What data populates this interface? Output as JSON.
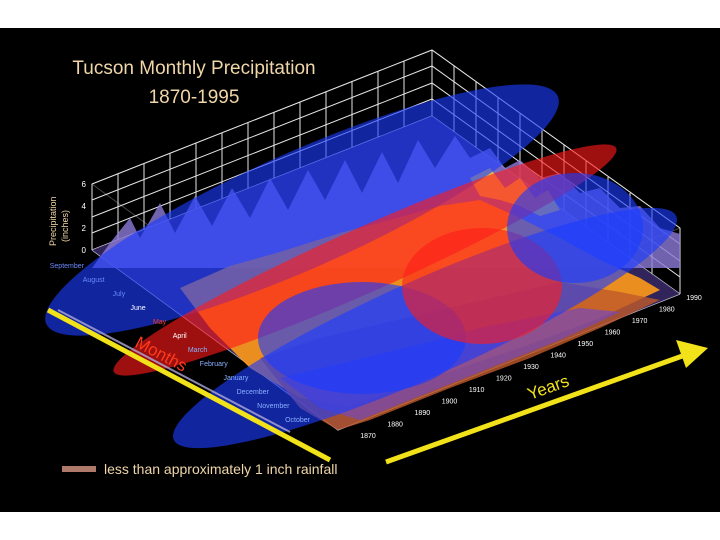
{
  "chart_data": {
    "type": "surface3d",
    "title_line1": "Tucson Monthly Precipitation",
    "title_line2": "1870-1995",
    "zlabel_line1": "Precipitation",
    "zlabel_line2": "(inches)",
    "z_ticks": [
      "0",
      "2",
      "4",
      "6"
    ],
    "zlim": [
      0,
      6
    ],
    "months_label": "Months",
    "years_label": "Years",
    "month_ticks": [
      "September",
      "August",
      "July",
      "June",
      "May",
      "April",
      "March",
      "February",
      "January",
      "December",
      "November",
      "October"
    ],
    "year_ticks": [
      "1870",
      "1880",
      "1890",
      "1900",
      "1910",
      "1920",
      "1930",
      "1940",
      "1950",
      "1960",
      "1970",
      "1980",
      "1990"
    ],
    "legend_label": "less than approximately 1 inch rainfall",
    "colors": {
      "background": "#000000",
      "title": "#f0d6a8",
      "highlight_blue": "#1a3cff",
      "highlight_red": "#ff1a1a",
      "arrow": "#f2e21a",
      "legend_swatch": "#b07a6a",
      "grid": "#ffffff"
    }
  }
}
